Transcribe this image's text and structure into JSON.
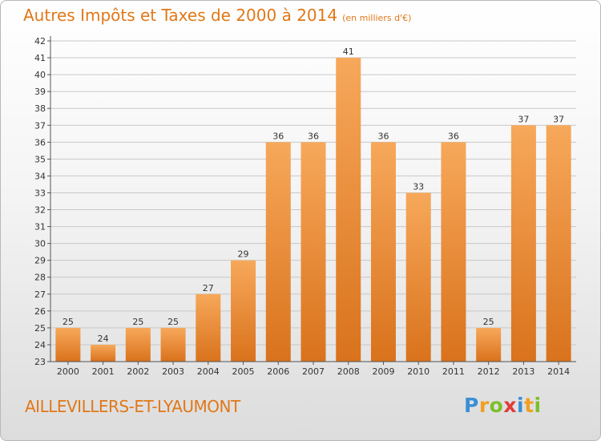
{
  "header": {
    "title": "Autres Impôts et Taxes de 2000 à 2014",
    "unit": "(en milliers d'€)"
  },
  "footer": {
    "commune": "AILLEVILLERS-ET-LYAUMONT",
    "logo_letters": [
      "P",
      "r",
      "o",
      "x",
      "i",
      "t",
      "i"
    ],
    "logo_colors": [
      "#3a8fd6",
      "#f0a020",
      "#7cbf2a",
      "#e23b3b",
      "#3a8fd6",
      "#f0a020",
      "#7cbf2a"
    ]
  },
  "colors": {
    "title": "#e07818",
    "bar_top": "#f7a85a",
    "bar_bottom": "#d9721c",
    "grid": "#c8c8c8",
    "axis_text": "#333333"
  },
  "chart_data": {
    "type": "bar",
    "title": "Autres Impôts et Taxes de 2000 à 2014",
    "xlabel": "",
    "ylabel": "",
    "categories": [
      "2000",
      "2001",
      "2002",
      "2003",
      "2004",
      "2005",
      "2006",
      "2007",
      "2008",
      "2009",
      "2010",
      "2011",
      "2012",
      "2013",
      "2014"
    ],
    "values": [
      25,
      24,
      25,
      25,
      27,
      29,
      36,
      36,
      41,
      36,
      33,
      36,
      25,
      37,
      37
    ],
    "ylim": [
      23,
      42
    ],
    "yticks": [
      23,
      24,
      25,
      26,
      27,
      28,
      29,
      30,
      31,
      32,
      33,
      34,
      35,
      36,
      37,
      38,
      39,
      40,
      41,
      42
    ],
    "grid": true,
    "data_labels": true
  }
}
